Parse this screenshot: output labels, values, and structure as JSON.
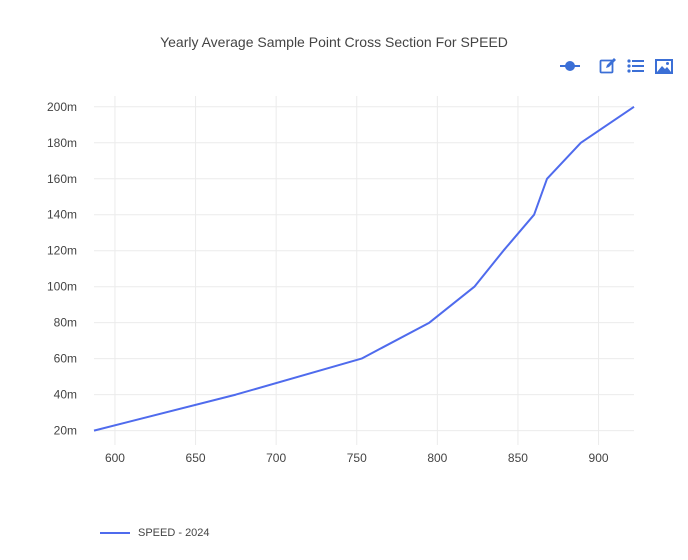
{
  "chart_data": {
    "type": "line",
    "title": "Yearly Average Sample Point Cross Section For SPEED",
    "xlabel": "",
    "ylabel": "",
    "xlim": [
      587,
      922
    ],
    "ylim": [
      12,
      206
    ],
    "x_ticks": [
      600,
      650,
      700,
      750,
      800,
      850,
      900
    ],
    "y_ticks": [
      20,
      40,
      60,
      80,
      100,
      120,
      140,
      160,
      180,
      200
    ],
    "y_tick_labels": [
      "20m",
      "40m",
      "60m",
      "80m",
      "100m",
      "120m",
      "140m",
      "160m",
      "180m",
      "200m"
    ],
    "grid": true,
    "legend_position": "bottom-left",
    "series": [
      {
        "name": "SPEED - 2024",
        "color": "#4f6bed",
        "x": [
          587,
          675,
          753,
          795,
          823,
          841,
          860,
          868,
          889,
          922
        ],
        "y": [
          20,
          40,
          60,
          80,
          100,
          120,
          140,
          160,
          180,
          200
        ]
      }
    ]
  },
  "toolbar": {
    "icons": [
      "dot-line-icon",
      "edit-icon",
      "list-icon",
      "image-icon"
    ],
    "color": "#3b6fd6"
  }
}
